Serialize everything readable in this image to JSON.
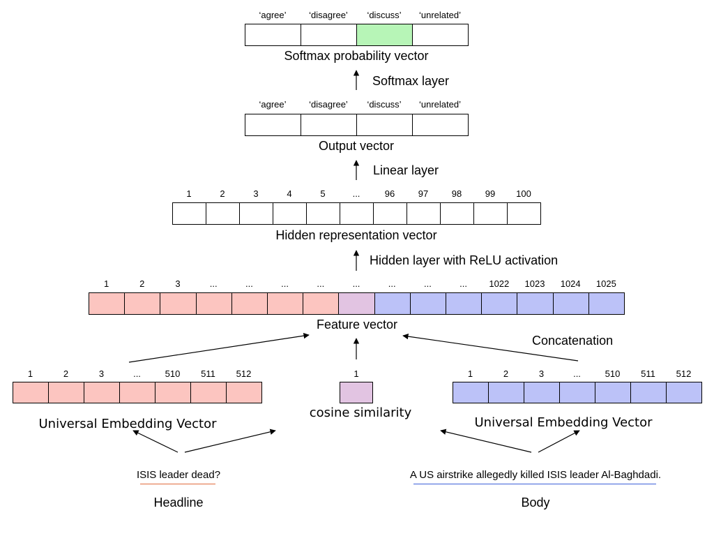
{
  "softmax_vector": {
    "labels": [
      "‘agree’",
      "‘disagree’",
      "‘discuss’",
      "‘unrelated’"
    ],
    "title": "Softmax probability vector",
    "highlight_index": 2,
    "highlight_color": "#b7f5b7"
  },
  "softmax_layer_label": "Softmax layer",
  "output_vector": {
    "labels": [
      "‘agree’",
      "‘disagree’",
      "‘discuss’",
      "‘unrelated’"
    ],
    "title": "Output vector"
  },
  "linear_layer_label": "Linear layer",
  "hidden_vector": {
    "labels": [
      "1",
      "2",
      "3",
      "4",
      "5",
      "...",
      "96",
      "97",
      "98",
      "99",
      "100"
    ],
    "title": "Hidden representation vector"
  },
  "hidden_layer_label": "Hidden layer with ReLU activation",
  "feature_vector": {
    "labels": [
      "1",
      "2",
      "3",
      "...",
      "...",
      "...",
      "...",
      "...",
      "...",
      "...",
      "...",
      "1022",
      "1023",
      "1024",
      "1025"
    ],
    "title": "Feature vector",
    "cell_colors": [
      "#fcc5c0",
      "#fcc5c0",
      "#fcc5c0",
      "#fcc5c0",
      "#fcc5c0",
      "#fcc5c0",
      "#fcc5c0",
      "#e2c4e2",
      "#bcc2f8",
      "#bcc2f8",
      "#bcc2f8",
      "#bcc2f8",
      "#bcc2f8",
      "#bcc2f8",
      "#bcc2f8"
    ]
  },
  "concatenation_label": "Concatenation",
  "headline_embedding": {
    "labels": [
      "1",
      "2",
      "3",
      "...",
      "510",
      "511",
      "512"
    ],
    "title": "Universal Embedding Vector",
    "color": "#fcc5c0"
  },
  "cosine": {
    "label": "1",
    "title": "cosine similarity",
    "color": "#e2c4e2"
  },
  "body_embedding": {
    "labels": [
      "1",
      "2",
      "3",
      "...",
      "510",
      "511",
      "512"
    ],
    "title": "Universal Embedding Vector",
    "color": "#bcc2f8"
  },
  "headline": {
    "text": "ISIS leader dead?",
    "caption": "Headline",
    "underline_color": "#e06a3a"
  },
  "body": {
    "text": "A US airstrike allegedly killed ISIS leader Al-Baghdadi.",
    "caption": "Body",
    "underline_color": "#3b5fd9"
  }
}
